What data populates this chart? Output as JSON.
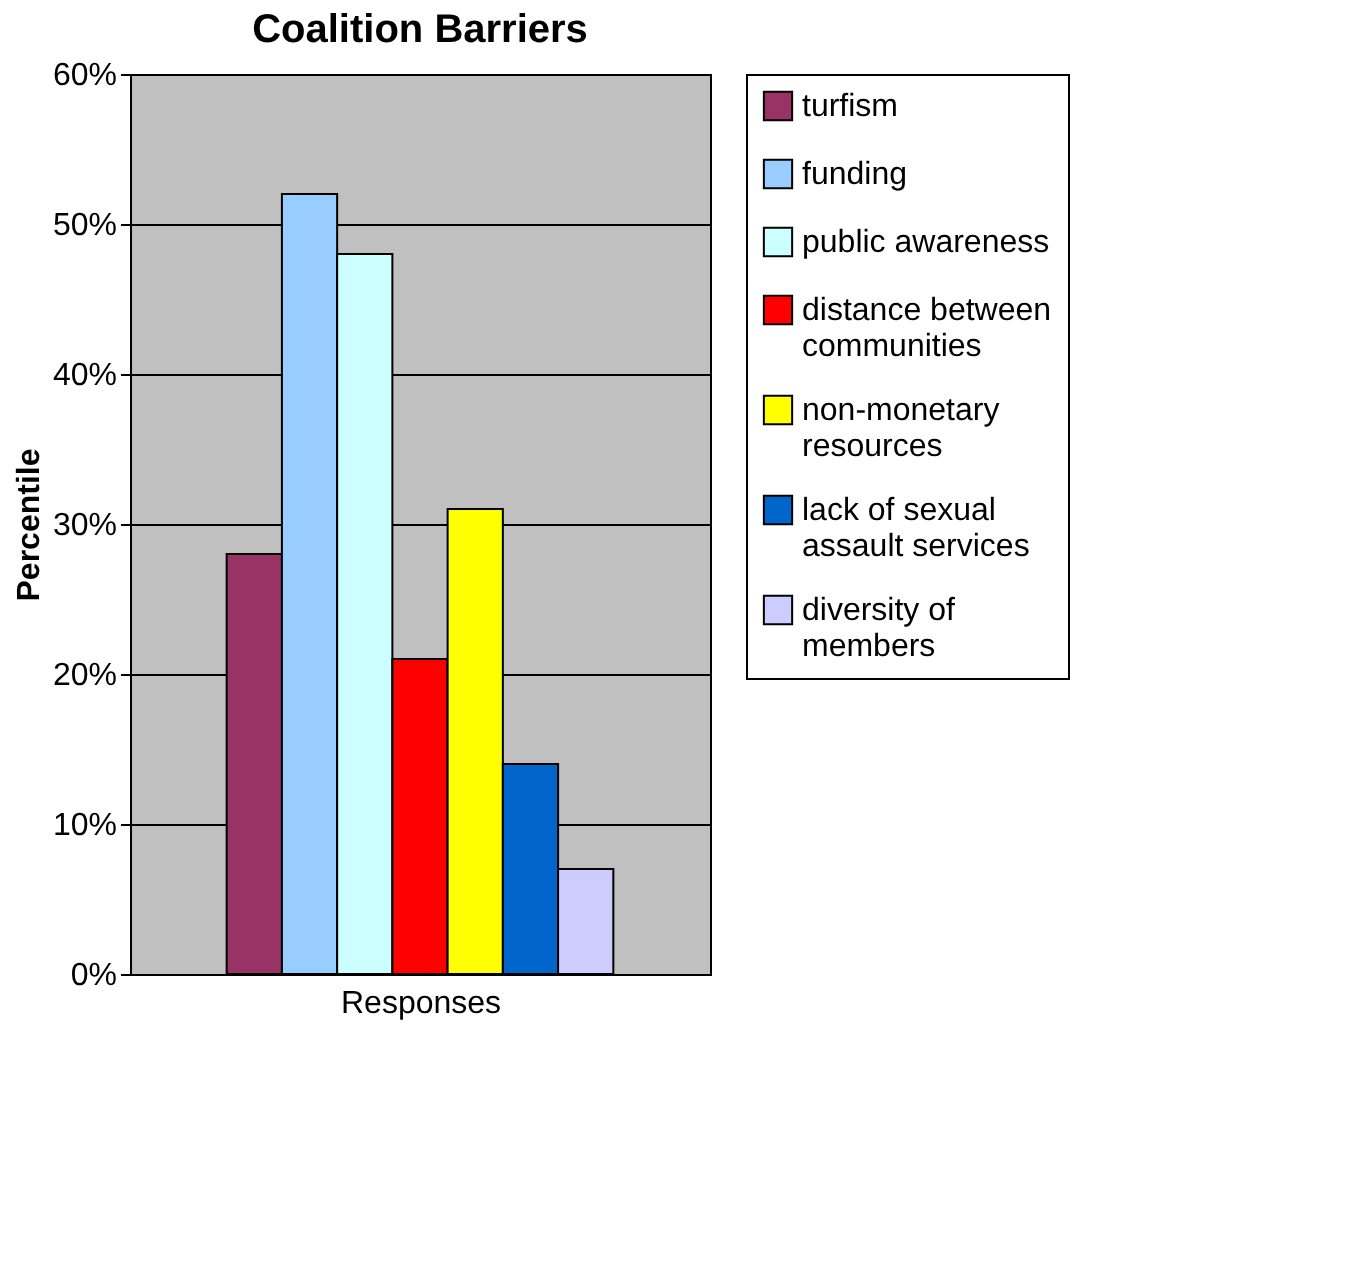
{
  "chart_data": {
    "type": "bar",
    "title": "Coalition Barriers",
    "xlabel": "Responses",
    "ylabel": "Percentile",
    "categories": [
      null
    ],
    "series": [
      {
        "name": "turfism",
        "color": "#993366",
        "values": [
          28
        ]
      },
      {
        "name": "funding",
        "color": "#99ccff",
        "values": [
          52
        ]
      },
      {
        "name": "public awareness",
        "color": "#ccffff",
        "values": [
          48
        ]
      },
      {
        "name": "distance between communities",
        "color": "#ff0000",
        "values": [
          21
        ]
      },
      {
        "name": "non-monetary resources",
        "color": "#ffff00",
        "values": [
          31
        ]
      },
      {
        "name": "lack of sexual assault services",
        "color": "#0066cc",
        "values": [
          14
        ]
      },
      {
        "name": "diversity of members",
        "color": "#ccccff",
        "values": [
          7
        ]
      }
    ],
    "ylim": [
      0,
      60
    ],
    "yticks": [
      {
        "value": 0,
        "label": "0%"
      },
      {
        "value": 10,
        "label": "10%"
      },
      {
        "value": 20,
        "label": "20%"
      },
      {
        "value": 30,
        "label": "30%"
      },
      {
        "value": 40,
        "label": "40%"
      },
      {
        "value": 50,
        "label": "50%"
      },
      {
        "value": 60,
        "label": "60%"
      }
    ],
    "grid": "y",
    "legend": "right"
  }
}
